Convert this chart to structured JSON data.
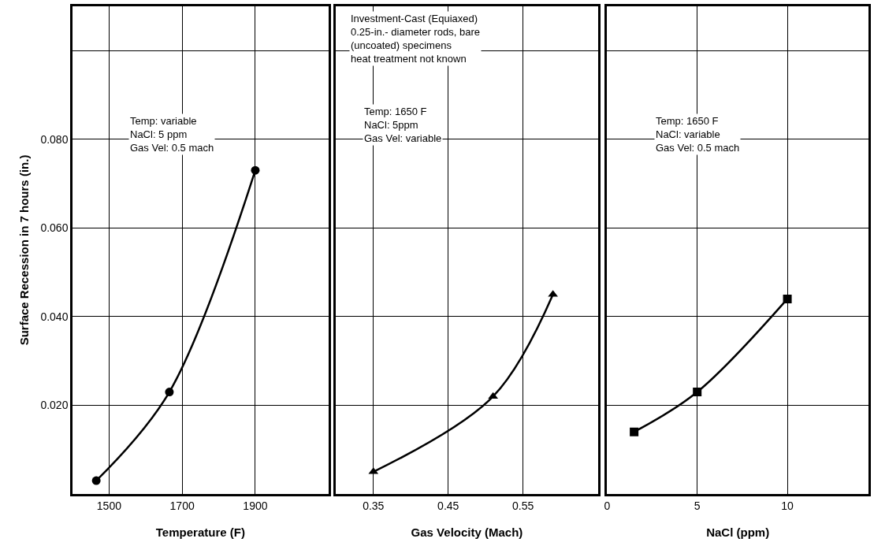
{
  "chart_data": [
    {
      "type": "line",
      "xlabel": "Temperature (F)",
      "ylabel": "Surface Recession in 7 hours (in.)",
      "marker": "circle",
      "grid": true,
      "x": [
        1465,
        1665,
        1900
      ],
      "values": [
        0.003,
        0.023,
        0.073
      ],
      "color": "#000000",
      "xlim": [
        1400,
        2100
      ],
      "xticks": [
        1500,
        1700,
        1900
      ],
      "ylim": [
        0,
        0.11
      ],
      "yticks": [
        {
          "value": 0.02,
          "label": "0.020"
        },
        {
          "value": 0.04,
          "label": "0.040"
        },
        {
          "value": 0.06,
          "label": "0.060"
        },
        {
          "value": 0.08,
          "label": "0.080"
        },
        {
          "value": 0.1,
          "label": null
        }
      ],
      "annotations": [
        "Temp: variable\nNaCl: 5 ppm\nGas Vel: 0.5 mach"
      ]
    },
    {
      "type": "line",
      "xlabel": "Gas Velocity (Mach)",
      "marker": "triangle",
      "grid": true,
      "tick_labels": "x",
      "x": [
        0.35,
        0.51,
        0.59
      ],
      "values": [
        0.005,
        0.022,
        0.045
      ],
      "color": "#000000",
      "xlim": [
        0.3,
        0.65
      ],
      "xticks": [
        0.35,
        0.45,
        0.55
      ],
      "ylim": [
        0,
        0.11
      ],
      "yticks": [
        {
          "value": 0.02,
          "label": null
        },
        {
          "value": 0.04,
          "label": null
        },
        {
          "value": 0.06,
          "label": null
        },
        {
          "value": 0.08,
          "label": null
        },
        {
          "value": 0.1,
          "label": null
        }
      ],
      "annotations": [
        "Investment-Cast (Equiaxed)\n0.25-in.- diameter rods, bare\n(uncoated) specimens\nheat treatment not known",
        "Temp: 1650 F\nNaCl: 5ppm\nGas Vel: variable"
      ]
    },
    {
      "type": "line",
      "xlabel": "NaCl (ppm)",
      "marker": "square",
      "grid": true,
      "tick_labels": "x",
      "x": [
        1.5,
        5,
        10
      ],
      "values": [
        0.014,
        0.023,
        0.044
      ],
      "color": "#000000",
      "xlim": [
        0,
        14.5
      ],
      "xticks": [
        0,
        5,
        10
      ],
      "ylim": [
        0,
        0.11
      ],
      "yticks": [
        {
          "value": 0.02,
          "label": null
        },
        {
          "value": 0.04,
          "label": null
        },
        {
          "value": 0.06,
          "label": null
        },
        {
          "value": 0.08,
          "label": null
        },
        {
          "value": 0.1,
          "label": null
        }
      ],
      "annotations": [
        "Temp: 1650 F\nNaCl: variable\nGas Vel: 0.5 mach"
      ]
    }
  ]
}
